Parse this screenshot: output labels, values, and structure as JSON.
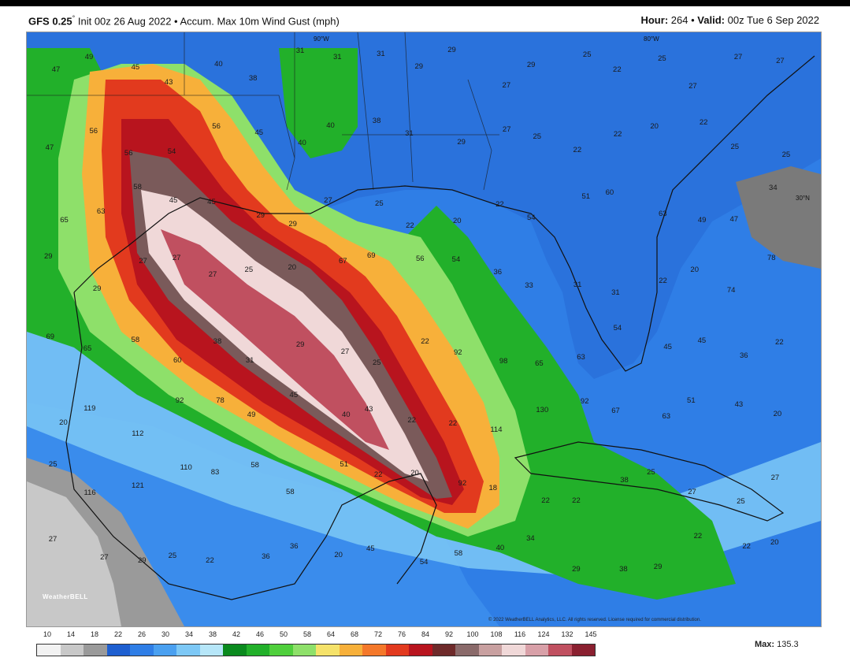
{
  "header": {
    "model": "GFS 0.25",
    "degree": "°",
    "init": "Init 00z 26 Aug 2022",
    "sep1": "•",
    "product": "Accum. Max 10m Wind Gust (mph)",
    "hour_label": "Hour",
    "hour_value": "264",
    "sep2": "•",
    "valid_label": "Valid",
    "valid_value": "00z Tue 6 Sep 2022"
  },
  "map": {
    "lat_label": "30°N",
    "lon_label_1": "90°W",
    "lon_label_2": "80°W",
    "credit": "© 2022 WeatherBELL Analytics, LLC. All rights reserved. License required for commercial distribution.",
    "logo": "WeatherBELL",
    "value_labels": [
      "47",
      "49",
      "45",
      "43",
      "40",
      "38",
      "31",
      "31",
      "31",
      "29",
      "29",
      "27",
      "29",
      "25",
      "22",
      "25",
      "27",
      "27",
      "27",
      "47",
      "56",
      "56",
      "54",
      "56",
      "45",
      "40",
      "40",
      "38",
      "31",
      "29",
      "27",
      "25",
      "22",
      "22",
      "20",
      "22",
      "25",
      "25",
      "65",
      "63",
      "58",
      "45",
      "45",
      "29",
      "29",
      "27",
      "25",
      "22",
      "20",
      "22",
      "54",
      "51",
      "60",
      "63",
      "49",
      "47",
      "34",
      "29",
      "29",
      "27",
      "27",
      "27",
      "25",
      "20",
      "67",
      "69",
      "56",
      "54",
      "36",
      "33",
      "31",
      "31",
      "22",
      "20",
      "74",
      "78",
      "69",
      "65",
      "58",
      "60",
      "38",
      "31",
      "29",
      "27",
      "25",
      "22",
      "92",
      "98",
      "65",
      "63",
      "54",
      "45",
      "45",
      "36",
      "22",
      "20",
      "119",
      "112",
      "92",
      "78",
      "49",
      "45",
      "40",
      "43",
      "22",
      "22",
      "114",
      "130",
      "92",
      "67",
      "63",
      "51",
      "43",
      "20",
      "25",
      "116",
      "121",
      "110",
      "83",
      "58",
      "58",
      "51",
      "22",
      "20",
      "92",
      "18",
      "22",
      "22",
      "38",
      "25",
      "27",
      "25",
      "27",
      "27",
      "27",
      "29",
      "25",
      "22",
      "36",
      "36",
      "20",
      "45",
      "54",
      "58",
      "40",
      "34",
      "29",
      "38",
      "29",
      "22",
      "22",
      "20"
    ]
  },
  "colorbar": {
    "ticks": [
      "10",
      "14",
      "18",
      "22",
      "26",
      "30",
      "34",
      "38",
      "42",
      "46",
      "50",
      "58",
      "64",
      "68",
      "72",
      "76",
      "84",
      "92",
      "100",
      "108",
      "116",
      "124",
      "132",
      "145"
    ],
    "colors": [
      "#f2f2f2",
      "#c8c8c8",
      "#9a9a9a",
      "#1e5fd0",
      "#2f7ee6",
      "#4aa0f0",
      "#7dc8f6",
      "#b6e6f8",
      "#0a8a1e",
      "#22b02a",
      "#4fcf3c",
      "#8ee06a",
      "#f5e26a",
      "#f7b03a",
      "#f4782a",
      "#e23a1e",
      "#b8141e",
      "#6e2a2a",
      "#8a6a6a",
      "#c8a0a0",
      "#f0d8d8",
      "#d8a0a8",
      "#c05060",
      "#8a2030"
    ],
    "max_label": "Max",
    "max_value": "135.3"
  }
}
